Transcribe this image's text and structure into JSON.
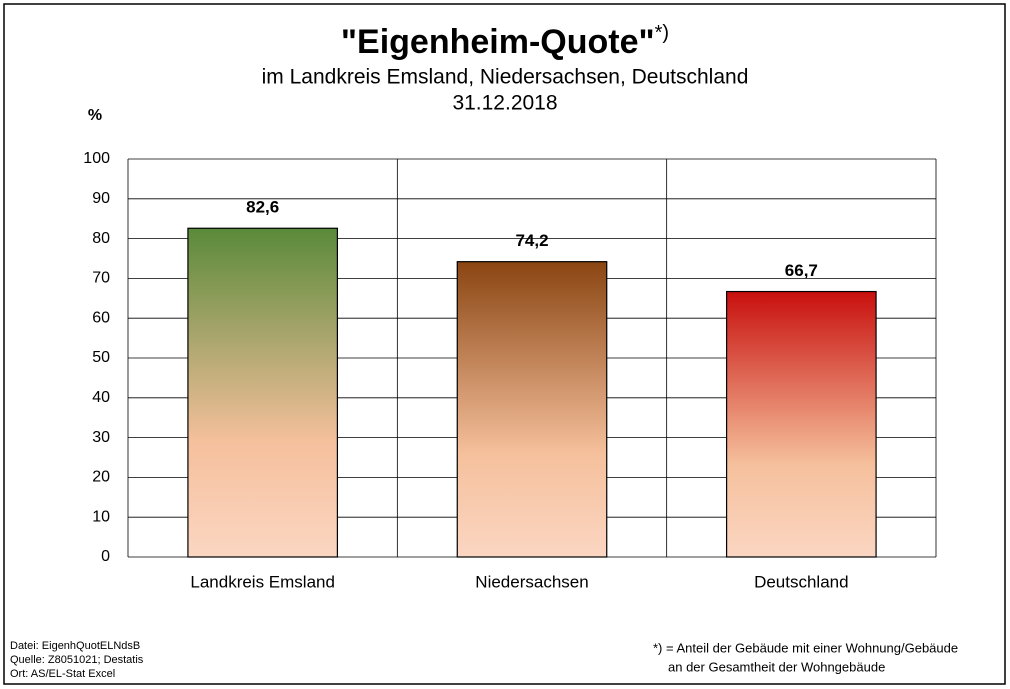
{
  "chart_data": {
    "type": "bar",
    "title": "\"Eigenheim-Quote\"",
    "title_superscript": "*)",
    "subtitle": [
      "im Landkreis Emsland, Niedersachsen, Deutschland",
      "31.12.2018"
    ],
    "y_label": "%",
    "categories": [
      "Landkreis Emsland",
      "Niedersachsen",
      "Deutschland"
    ],
    "values": [
      82.6,
      74.2,
      66.7
    ],
    "value_labels": [
      "82,6",
      "74,2",
      "66,7"
    ],
    "colors": [
      "#5a8a3a",
      "#8a4512",
      "#c8100e"
    ],
    "gradient_end": "#fbd6c2",
    "ylim": [
      0,
      100
    ],
    "yticks": [
      0,
      10,
      20,
      30,
      40,
      50,
      60,
      70,
      80,
      90,
      100
    ],
    "grid": true,
    "source_notes": [
      "Datei: EigenhQuotELNdsB",
      "Quelle: Z8051021;  Destatis",
      "Ort: AS/EL-Stat Excel"
    ],
    "footnote": [
      "*) = Anteil der Gebäude mit einer Wohnung/Gebäude",
      "an der Gesamtheit der Wohngebäude"
    ]
  }
}
